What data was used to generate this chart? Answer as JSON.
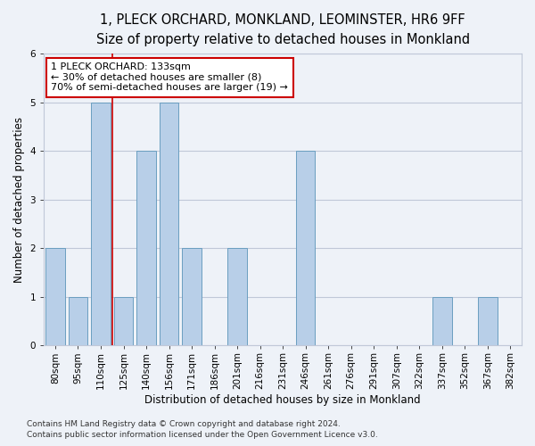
{
  "title1": "1, PLECK ORCHARD, MONKLAND, LEOMINSTER, HR6 9FF",
  "title2": "Size of property relative to detached houses in Monkland",
  "xlabel": "Distribution of detached houses by size in Monkland",
  "ylabel": "Number of detached properties",
  "categories": [
    "80sqm",
    "95sqm",
    "110sqm",
    "125sqm",
    "140sqm",
    "156sqm",
    "171sqm",
    "186sqm",
    "201sqm",
    "216sqm",
    "231sqm",
    "246sqm",
    "261sqm",
    "276sqm",
    "291sqm",
    "307sqm",
    "322sqm",
    "337sqm",
    "352sqm",
    "367sqm",
    "382sqm"
  ],
  "values": [
    2,
    1,
    5,
    1,
    4,
    5,
    2,
    0,
    2,
    0,
    0,
    4,
    0,
    0,
    0,
    0,
    0,
    1,
    0,
    1,
    0
  ],
  "bar_color": "#b8cfe8",
  "bar_edge_color": "#6a9ec0",
  "vline_color": "#cc0000",
  "vline_x": 2.52,
  "annotation_lines": [
    "1 PLECK ORCHARD: 133sqm",
    "← 30% of detached houses are smaller (8)",
    "70% of semi-detached houses are larger (19) →"
  ],
  "annotation_box_color": "white",
  "annotation_box_edge_color": "#cc0000",
  "ylim": [
    0,
    6
  ],
  "yticks": [
    0,
    1,
    2,
    3,
    4,
    5,
    6
  ],
  "footnote1": "Contains HM Land Registry data © Crown copyright and database right 2024.",
  "footnote2": "Contains public sector information licensed under the Open Government Licence v3.0.",
  "background_color": "#eef2f8",
  "plot_bg_color": "#eef2f8",
  "grid_color": "#c0c8d8",
  "title1_fontsize": 10.5,
  "title2_fontsize": 9.5,
  "axis_label_fontsize": 8.5,
  "tick_fontsize": 7.5,
  "annotation_fontsize": 8,
  "footnote_fontsize": 6.5
}
